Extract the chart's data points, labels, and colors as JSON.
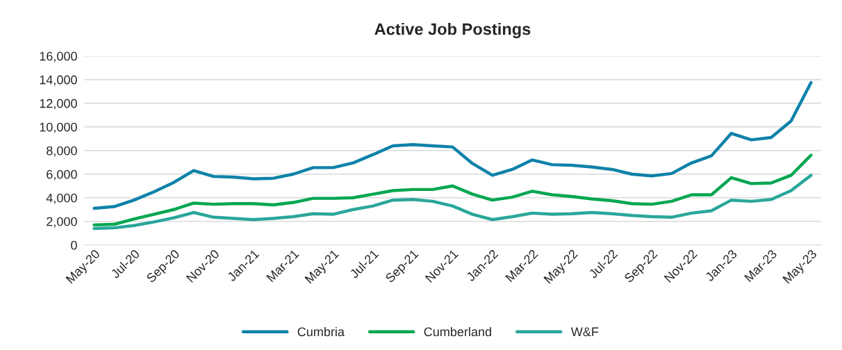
{
  "chart_data": {
    "type": "line",
    "title": "Active Job Postings",
    "categories": [
      "May-20",
      null,
      "Jul-20",
      null,
      "Sep-20",
      null,
      "Nov-20",
      null,
      "Jan-21",
      null,
      "Mar-21",
      null,
      "May-21",
      null,
      "Jul-21",
      null,
      "Sep-21",
      null,
      "Nov-21",
      null,
      "Jan-22",
      null,
      "Mar-22",
      null,
      "May-22",
      null,
      "Jul-22",
      null,
      "Sep-22",
      null,
      "Nov-22",
      null,
      "Jan-23",
      null,
      "Mar-23",
      null,
      "May-23"
    ],
    "series": [
      {
        "name": "Cumbria",
        "color": "#0e82a9",
        "values": [
          3100,
          3250,
          3800,
          4500,
          5300,
          6300,
          5800,
          5750,
          5600,
          5650,
          6000,
          6550,
          6550,
          6950,
          7650,
          8400,
          8500,
          8400,
          8300,
          6900,
          5900,
          6400,
          7200,
          6800,
          6750,
          6600,
          6400,
          6000,
          5850,
          6050,
          6950,
          7550,
          9450,
          8900,
          9100,
          10500,
          13750
        ]
      },
      {
        "name": "Cumberland",
        "color": "#00a651",
        "values": [
          1700,
          1750,
          2200,
          2600,
          3000,
          3550,
          3450,
          3500,
          3500,
          3400,
          3600,
          3950,
          3950,
          4000,
          4300,
          4600,
          4700,
          4700,
          5000,
          4300,
          3800,
          4050,
          4550,
          4250,
          4100,
          3900,
          3750,
          3500,
          3450,
          3700,
          4250,
          4250,
          5700,
          5200,
          5250,
          5900,
          7600
        ]
      },
      {
        "name": "W&F",
        "color": "#2aa69a",
        "values": [
          1400,
          1450,
          1650,
          1950,
          2300,
          2750,
          2350,
          2250,
          2150,
          2250,
          2400,
          2650,
          2600,
          3000,
          3300,
          3800,
          3850,
          3700,
          3300,
          2600,
          2150,
          2400,
          2700,
          2600,
          2650,
          2750,
          2650,
          2500,
          2400,
          2350,
          2700,
          2900,
          3800,
          3700,
          3850,
          4600,
          5900
        ]
      }
    ],
    "ylim": [
      0,
      16000
    ],
    "yticks": [
      {
        "value": 0,
        "label": "0"
      },
      {
        "value": 2000,
        "label": "2,000"
      },
      {
        "value": 4000,
        "label": "4,000"
      },
      {
        "value": 6000,
        "label": "6,000"
      },
      {
        "value": 8000,
        "label": "8,000"
      },
      {
        "value": 10000,
        "label": "10,000"
      },
      {
        "value": 12000,
        "label": "12,000"
      },
      {
        "value": 14000,
        "label": "14,000"
      },
      {
        "value": 16000,
        "label": "16,000"
      }
    ],
    "grid": "y",
    "legend": "bottom",
    "marker": "none",
    "line_style": "solid"
  }
}
